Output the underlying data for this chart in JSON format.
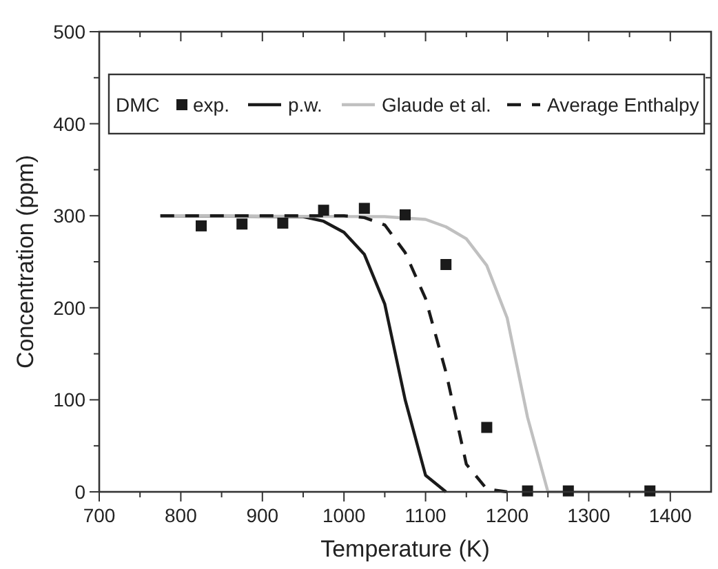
{
  "chart_data": {
    "type": "line",
    "xlabel": "Temperature (K)",
    "ylabel": "Concentration (ppm)",
    "legend_title": "DMC",
    "legend": "top",
    "xlim": [
      700,
      1450
    ],
    "ylim": [
      0,
      500
    ],
    "xticks": [
      700,
      {
        "value": 750,
        "label": null
      },
      800,
      {
        "value": 850,
        "label": null
      },
      900,
      {
        "value": 950,
        "label": null
      },
      1000,
      {
        "value": 1050,
        "label": null
      },
      1100,
      {
        "value": 1150,
        "label": null
      },
      1200,
      {
        "value": 1250,
        "label": null
      },
      1300,
      {
        "value": 1350,
        "label": null
      },
      1400
    ],
    "yticks": [
      0,
      {
        "value": 50,
        "label": null
      },
      100,
      {
        "value": 150,
        "label": null
      },
      200,
      {
        "value": 250,
        "label": null
      },
      300,
      {
        "value": 350,
        "label": null
      },
      400,
      {
        "value": 450,
        "label": null
      },
      500
    ],
    "grid": false,
    "series": [
      {
        "name": "exp.",
        "type": "scatter",
        "marker": "square",
        "color": "#1a1a1a",
        "x": [
          825,
          875,
          925,
          975,
          1025,
          1075,
          1125,
          1175,
          1225,
          1275,
          1375
        ],
        "values": [
          289,
          291,
          292,
          306,
          308,
          301,
          247,
          70,
          1,
          1,
          1
        ]
      },
      {
        "name": "p.w.",
        "type": "line",
        "line_style": "solid",
        "color": "#1a1a1a",
        "x": [
          775,
          950,
          975,
          1000,
          1025,
          1050,
          1075,
          1100,
          1125
        ],
        "values": [
          300,
          299,
          294,
          282,
          258,
          204,
          100,
          18,
          0
        ]
      },
      {
        "name": "Glaude et al.",
        "type": "line",
        "line_style": "solid",
        "color": "#c0c0c0",
        "x": [
          775,
          1050,
          1100,
          1125,
          1150,
          1175,
          1200,
          1225,
          1250,
          1400
        ],
        "values": [
          300,
          299,
          296,
          288,
          275,
          246,
          189,
          81,
          0,
          0
        ]
      },
      {
        "name": "Average Enthalpy",
        "type": "line",
        "line_style": "dashed",
        "color": "#1a1a1a",
        "x": [
          775,
          1000,
          1025,
          1050,
          1075,
          1100,
          1125,
          1150,
          1175,
          1200
        ],
        "values": [
          300,
          300,
          298,
          290,
          260,
          210,
          130,
          30,
          3,
          0
        ]
      }
    ]
  }
}
